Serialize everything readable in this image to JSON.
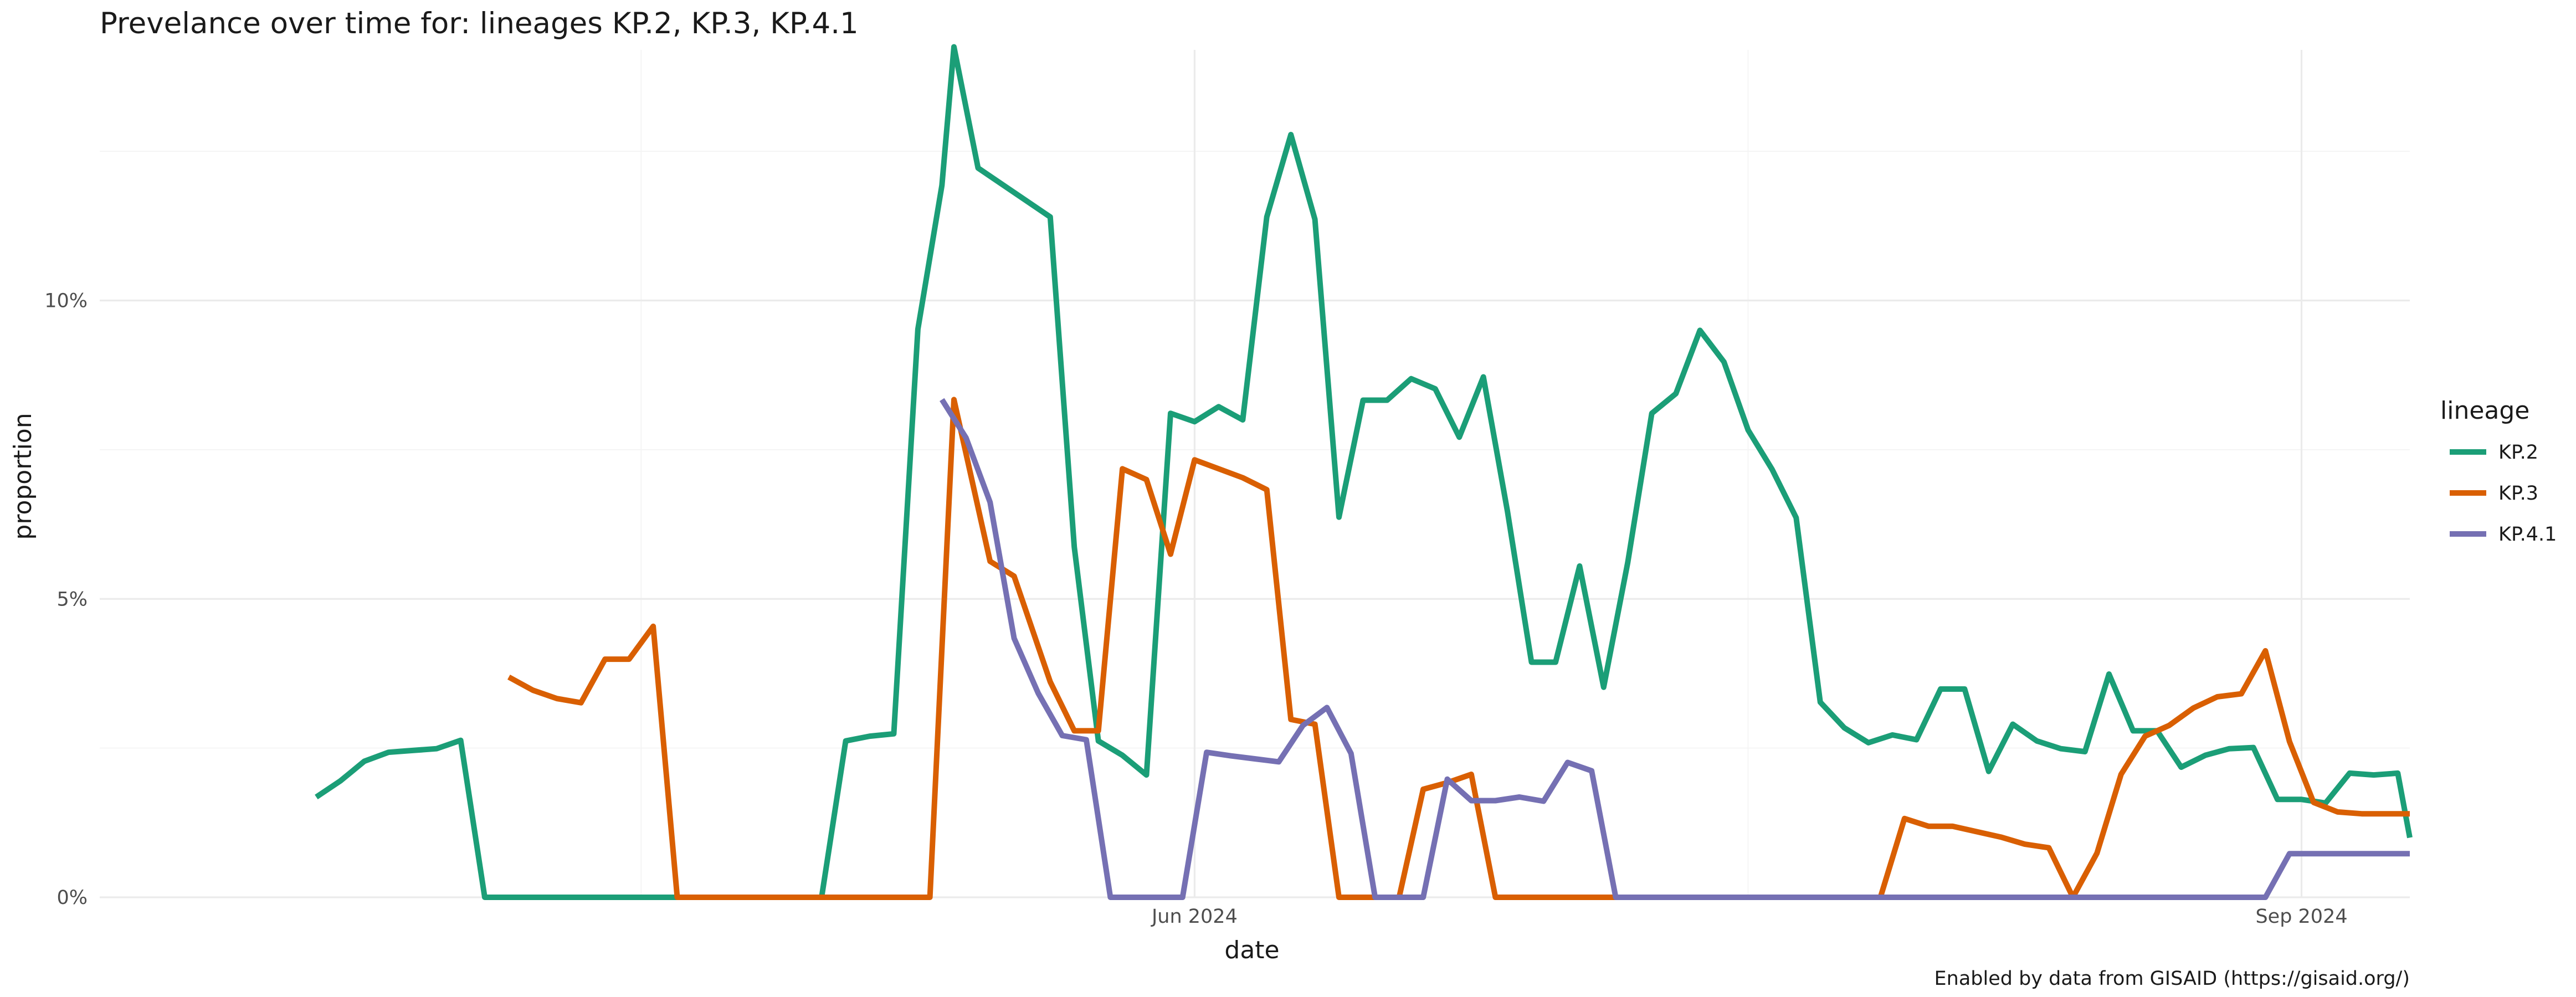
{
  "chart_data": {
    "type": "line",
    "title": "Prevelance over time for: lineages KP.2, KP.3, KP.4.1",
    "xlabel": "date",
    "ylabel": "proportion",
    "caption": "Enabled by data from GISAID (https://gisaid.org/)",
    "x_range": [
      "2024-03-02",
      "2024-09-10"
    ],
    "ylim": [
      0,
      0.142
    ],
    "x_ticks": [
      {
        "date": "2024-06-01",
        "label": "Jun 2024"
      },
      {
        "date": "2024-09-01",
        "label": "Sep 2024"
      }
    ],
    "y_ticks": [
      {
        "value": 0,
        "label": "0%"
      },
      {
        "value": 0.05,
        "label": "5%"
      },
      {
        "value": 0.1,
        "label": "10%"
      }
    ],
    "legend": {
      "title": "lineage",
      "position": "right"
    },
    "series": [
      {
        "name": "KP.2",
        "color": "#1b9e77",
        "points": [
          [
            "2024-03-20",
            0.0168
          ],
          [
            "2024-03-22",
            0.0195
          ],
          [
            "2024-03-24",
            0.0228
          ],
          [
            "2024-03-26",
            0.0243
          ],
          [
            "2024-03-28",
            0.0246
          ],
          [
            "2024-03-30",
            0.0249
          ],
          [
            "2024-04-01",
            0.0263
          ],
          [
            "2024-04-03",
            0
          ],
          [
            "2024-04-21",
            0
          ],
          [
            "2024-04-23",
            0
          ],
          [
            "2024-05-01",
            0
          ],
          [
            "2024-05-03",
            0.0262
          ],
          [
            "2024-05-05",
            0.027
          ],
          [
            "2024-05-07",
            0.0274
          ],
          [
            "2024-05-09",
            0.0952
          ],
          [
            "2024-05-11",
            0.1193
          ],
          [
            "2024-05-12",
            0.1425
          ],
          [
            "2024-05-14",
            0.1222
          ],
          [
            "2024-05-20",
            0.114
          ],
          [
            "2024-05-22",
            0.0587
          ],
          [
            "2024-05-24",
            0.0262
          ],
          [
            "2024-05-26",
            0.0238
          ],
          [
            "2024-05-28",
            0.0205
          ],
          [
            "2024-05-30",
            0.0811
          ],
          [
            "2024-06-01",
            0.0797
          ],
          [
            "2024-06-03",
            0.0822
          ],
          [
            "2024-06-05",
            0.08
          ],
          [
            "2024-06-07",
            0.114
          ],
          [
            "2024-06-09",
            0.1278
          ],
          [
            "2024-06-11",
            0.1136
          ],
          [
            "2024-06-13",
            0.0637
          ],
          [
            "2024-06-15",
            0.0833
          ],
          [
            "2024-06-17",
            0.0833
          ],
          [
            "2024-06-19",
            0.0869
          ],
          [
            "2024-06-21",
            0.0852
          ],
          [
            "2024-06-23",
            0.0771
          ],
          [
            "2024-06-25",
            0.0872
          ],
          [
            "2024-06-27",
            0.0647
          ],
          [
            "2024-06-29",
            0.0394
          ],
          [
            "2024-07-01",
            0.0394
          ],
          [
            "2024-07-03",
            0.0555
          ],
          [
            "2024-07-05",
            0.0352
          ],
          [
            "2024-07-07",
            0.0561
          ],
          [
            "2024-07-09",
            0.0811
          ],
          [
            "2024-07-11",
            0.0844
          ],
          [
            "2024-07-13",
            0.095
          ],
          [
            "2024-07-15",
            0.0897
          ],
          [
            "2024-07-17",
            0.0783
          ],
          [
            "2024-07-19",
            0.0717
          ],
          [
            "2024-07-21",
            0.0636
          ],
          [
            "2024-07-23",
            0.0327
          ],
          [
            "2024-07-25",
            0.0284
          ],
          [
            "2024-07-27",
            0.0259
          ],
          [
            "2024-07-29",
            0.0272
          ],
          [
            "2024-07-31",
            0.0264
          ],
          [
            "2024-08-02",
            0.0349
          ],
          [
            "2024-08-04",
            0.0349
          ],
          [
            "2024-08-06",
            0.0211
          ],
          [
            "2024-08-08",
            0.029
          ],
          [
            "2024-08-10",
            0.0262
          ],
          [
            "2024-08-12",
            0.0249
          ],
          [
            "2024-08-14",
            0.0244
          ],
          [
            "2024-08-16",
            0.0374
          ],
          [
            "2024-08-18",
            0.0279
          ],
          [
            "2024-08-20",
            0.0279
          ],
          [
            "2024-08-22",
            0.0218
          ],
          [
            "2024-08-24",
            0.0238
          ],
          [
            "2024-08-26",
            0.0249
          ],
          [
            "2024-08-28",
            0.0251
          ],
          [
            "2024-08-30",
            0.0164
          ],
          [
            "2024-09-01",
            0.0164
          ],
          [
            "2024-09-03",
            0.0158
          ],
          [
            "2024-09-05",
            0.0208
          ],
          [
            "2024-09-07",
            0.0205
          ],
          [
            "2024-09-09",
            0.0208
          ],
          [
            "2024-09-10",
            0.01
          ]
        ]
      },
      {
        "name": "KP.3",
        "color": "#d95f02",
        "points": [
          [
            "2024-04-05",
            0.0369
          ],
          [
            "2024-04-07",
            0.0347
          ],
          [
            "2024-04-09",
            0.0333
          ],
          [
            "2024-04-11",
            0.0326
          ],
          [
            "2024-04-13",
            0.0399
          ],
          [
            "2024-04-15",
            0.0399
          ],
          [
            "2024-04-17",
            0.0454
          ],
          [
            "2024-04-19",
            0
          ],
          [
            "2024-05-10",
            0
          ],
          [
            "2024-05-12",
            0.0834
          ],
          [
            "2024-05-15",
            0.0563
          ],
          [
            "2024-05-17",
            0.0538
          ],
          [
            "2024-05-20",
            0.0361
          ],
          [
            "2024-05-22",
            0.0279
          ],
          [
            "2024-05-24",
            0.0279
          ],
          [
            "2024-05-26",
            0.0718
          ],
          [
            "2024-05-28",
            0.07
          ],
          [
            "2024-05-30",
            0.0575
          ],
          [
            "2024-06-01",
            0.0733
          ],
          [
            "2024-06-05",
            0.0703
          ],
          [
            "2024-06-07",
            0.0683
          ],
          [
            "2024-06-09",
            0.0298
          ],
          [
            "2024-06-11",
            0.029
          ],
          [
            "2024-06-13",
            0
          ],
          [
            "2024-06-18",
            0
          ],
          [
            "2024-06-20",
            0.0181
          ],
          [
            "2024-06-22",
            0.0192
          ],
          [
            "2024-06-24",
            0.0206
          ],
          [
            "2024-06-26",
            0
          ],
          [
            "2024-07-28",
            0
          ],
          [
            "2024-07-30",
            0.0132
          ],
          [
            "2024-08-01",
            0.0119
          ],
          [
            "2024-08-03",
            0.0119
          ],
          [
            "2024-08-05",
            0.011
          ],
          [
            "2024-08-07",
            0.0101
          ],
          [
            "2024-08-09",
            0.0089
          ],
          [
            "2024-08-11",
            0.0083
          ],
          [
            "2024-08-13",
            0
          ],
          [
            "2024-08-15",
            0.0074
          ],
          [
            "2024-08-17",
            0.0206
          ],
          [
            "2024-08-19",
            0.027
          ],
          [
            "2024-08-21",
            0.0288
          ],
          [
            "2024-08-23",
            0.0317
          ],
          [
            "2024-08-25",
            0.0336
          ],
          [
            "2024-08-27",
            0.0341
          ],
          [
            "2024-08-29",
            0.0413
          ],
          [
            "2024-08-31",
            0.0261
          ],
          [
            "2024-09-02",
            0.0159
          ],
          [
            "2024-09-04",
            0.0143
          ],
          [
            "2024-09-06",
            0.014
          ],
          [
            "2024-09-08",
            0.014
          ],
          [
            "2024-09-10",
            0.014
          ]
        ]
      },
      {
        "name": "KP.4.1",
        "color": "#7570b3",
        "points": [
          [
            "2024-05-11",
            0.0834
          ],
          [
            "2024-05-13",
            0.077
          ],
          [
            "2024-05-15",
            0.0662
          ],
          [
            "2024-05-17",
            0.0434
          ],
          [
            "2024-05-19",
            0.0342
          ],
          [
            "2024-05-21",
            0.0271
          ],
          [
            "2024-05-23",
            0.0264
          ],
          [
            "2024-05-25",
            0
          ],
          [
            "2024-05-31",
            0
          ],
          [
            "2024-06-02",
            0.0243
          ],
          [
            "2024-06-04",
            0.0237
          ],
          [
            "2024-06-06",
            0.0232
          ],
          [
            "2024-06-08",
            0.0227
          ],
          [
            "2024-06-10",
            0.0288
          ],
          [
            "2024-06-12",
            0.0318
          ],
          [
            "2024-06-14",
            0.0241
          ],
          [
            "2024-06-16",
            0
          ],
          [
            "2024-06-20",
            0
          ],
          [
            "2024-06-22",
            0.0198
          ],
          [
            "2024-06-24",
            0.0162
          ],
          [
            "2024-06-26",
            0.0162
          ],
          [
            "2024-06-28",
            0.0168
          ],
          [
            "2024-06-30",
            0.0161
          ],
          [
            "2024-07-02",
            0.0226
          ],
          [
            "2024-07-04",
            0.0212
          ],
          [
            "2024-07-06",
            0
          ],
          [
            "2024-08-29",
            0
          ],
          [
            "2024-08-31",
            0.0073
          ],
          [
            "2024-09-02",
            0.0073
          ],
          [
            "2024-09-04",
            0.0073
          ],
          [
            "2024-09-06",
            0.0073
          ],
          [
            "2024-09-08",
            0.0073
          ],
          [
            "2024-09-10",
            0.0073
          ]
        ]
      }
    ]
  }
}
